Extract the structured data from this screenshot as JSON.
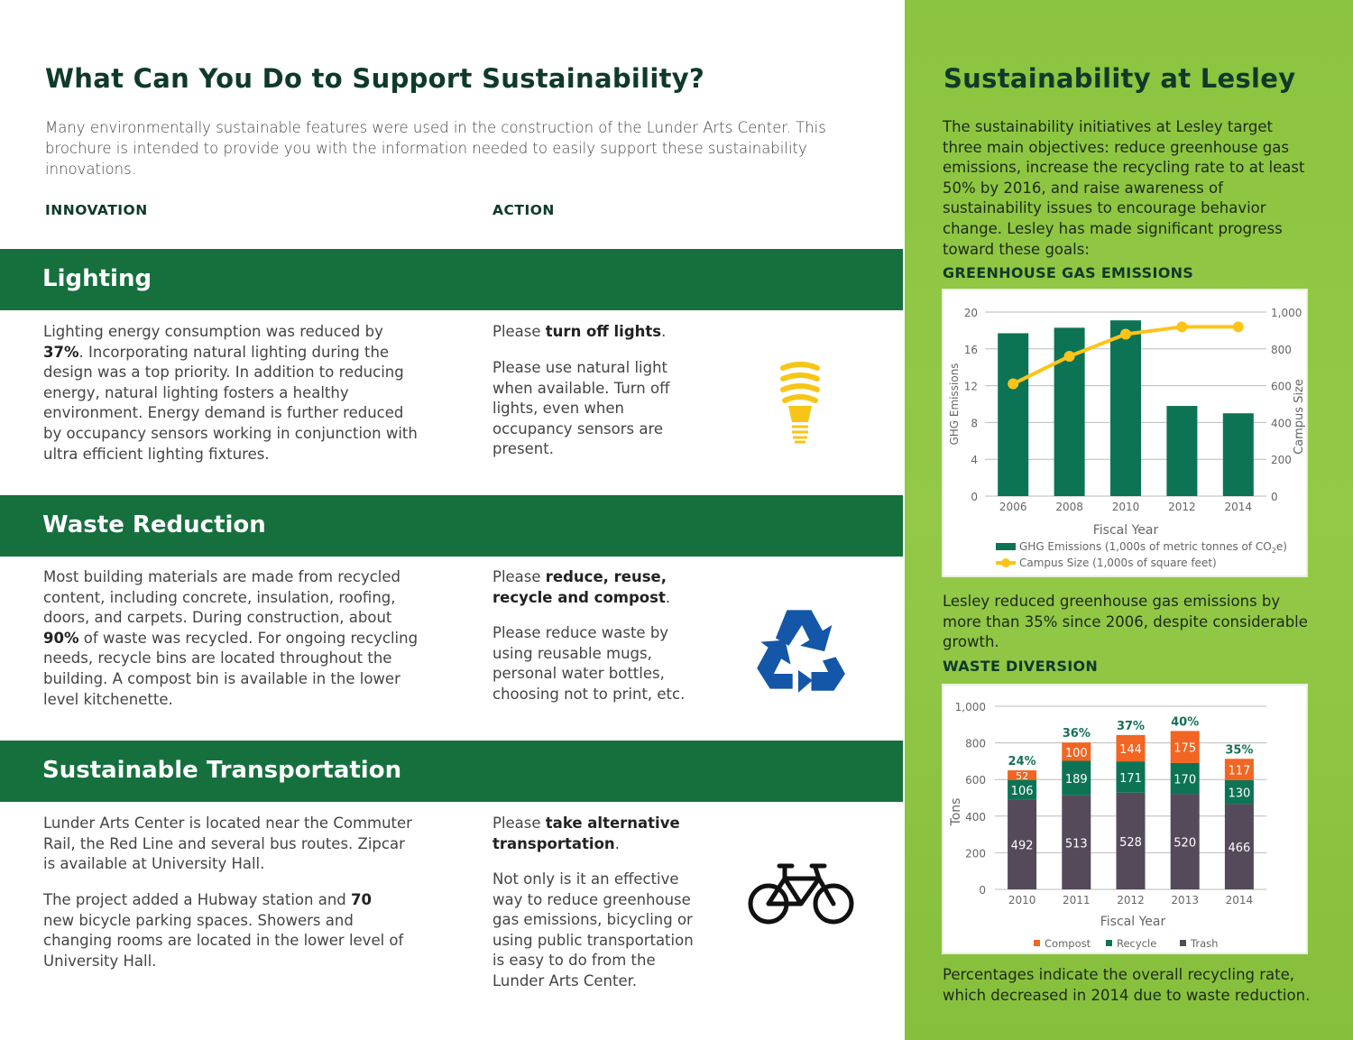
{
  "left": {
    "title": "What Can You Do to Support Sustainability?",
    "intro": "Many environmentally sustainable features were used in the construction of the Lunder Arts Center.  This brochure is intended to provide you with the information needed to easily support these sustainability innovations.",
    "col_innovation": "INNOVATION",
    "col_action": "ACTION",
    "sections": [
      {
        "title": "Lighting",
        "innovation": [
          "Lighting energy consumption was reduced by ",
          "37%",
          ". Incorporating natural lighting during the design was a top priority.  In addition to reducing energy, natural lighting fosters a healthy environment.  Energy demand is further reduced by occupancy sensors working in conjunction with ultra efficient lighting fixtures."
        ],
        "action_lead": [
          "Please ",
          "turn off lights",
          "."
        ],
        "action_body": "Please use natural light when available.  Turn off lights, even when occupancy sensors are present.",
        "icon": "lightbulb-icon"
      },
      {
        "title": "Waste Reduction",
        "innovation": [
          "Most building materials are made from recycled content, including concrete, insulation, roofing, doors, and carpets.  During construction, about ",
          "90%",
          " of waste was recycled.  For ongoing recycling needs, recycle bins are located throughout the building.  A compost bin is available in the lower level kitchenette."
        ],
        "action_lead": [
          "Please ",
          "reduce, reuse, recycle and compost",
          "."
        ],
        "action_body": "Please reduce waste by using reusable mugs, personal water bottles, choosing not to print, etc.",
        "icon": "recycle-icon"
      },
      {
        "title": "Sustainable Transportation",
        "innovation": "Lunder Arts Center is located near the Commuter Rail, the Red Line and several bus routes.  Zipcar is available at University Hall.",
        "innovation2": [
          "The project added a Hubway station and ",
          "70",
          " new bicycle parking spaces.  Showers and changing rooms are located in the lower level of University Hall."
        ],
        "action_lead": [
          "Please ",
          "take alternative transportation",
          "."
        ],
        "action_body": "Not only is it an effective way to reduce greenhouse gas emissions, bicycling or using public transportation is easy to do from the Lunder Arts Center.",
        "icon": "bicycle-icon"
      }
    ]
  },
  "right": {
    "title": "Sustainability at Lesley",
    "intro": "The sustainability initiatives at Lesley target three main objectives: reduce greenhouse gas emissions, increase the recycling rate to at least 50% by 2016, and raise awareness of sustainability issues to encourage behavior change.  Lesley has made significant progress toward these goals:",
    "ghg_heading": "GREENHOUSE GAS EMISSIONS",
    "ghg_caption": "Lesley reduced greenhouse gas emissions by more than 35% since 2006, despite considerable growth.",
    "waste_heading": "WASTE DIVERSION",
    "waste_caption": "Percentages indicate the overall recycling rate, which decreased in 2014 due to waste reduction."
  },
  "colors": {
    "band": "#16703e",
    "ghg_bar": "#0d7355",
    "campus_line": "#fcc419",
    "compost": "#f26522",
    "recycle": "#0d7355",
    "trash": "#544a5a",
    "pct": "#16705a"
  },
  "chart_data": [
    {
      "type": "bar",
      "title": "GREENHOUSE GAS EMISSIONS",
      "xlabel": "Fiscal Year",
      "ylabel": "GHG Emissions",
      "y2label": "Campus Size",
      "categories": [
        "2006",
        "2008",
        "2010",
        "2012",
        "2014"
      ],
      "ylim": [
        0,
        20
      ],
      "yticks": [
        "0",
        "4",
        "8",
        "12",
        "16",
        "20"
      ],
      "y2lim": [
        0,
        1000
      ],
      "y2ticks": [
        "0",
        "200",
        "400",
        "600",
        "800",
        "1,000"
      ],
      "series": [
        {
          "name": "GHG Emissions (1,000s of metric tonnes of CO",
          "name_sub": "2",
          "name_end": "e)",
          "type": "bar",
          "axis": "left",
          "values": [
            17.7,
            18.3,
            19.1,
            9.8,
            9.0
          ]
        },
        {
          "name": "Campus Size (1,000s of square feet)",
          "type": "line",
          "axis": "right",
          "values": [
            610,
            760,
            880,
            920,
            920
          ]
        }
      ],
      "grid": true,
      "legend": "bottom"
    },
    {
      "type": "bar",
      "stacked": true,
      "title": "WASTE DIVERSION",
      "xlabel": "Fiscal Year",
      "ylabel": "Tons",
      "categories": [
        "2010",
        "2011",
        "2012",
        "2013",
        "2014"
      ],
      "ylim": [
        0,
        1000
      ],
      "yticks": [
        "0",
        "200",
        "400",
        "600",
        "800",
        "1,000"
      ],
      "series": [
        {
          "name": "Trash",
          "values": [
            492,
            513,
            528,
            520,
            466
          ]
        },
        {
          "name": "Recycle",
          "values": [
            106,
            189,
            171,
            170,
            130
          ]
        },
        {
          "name": "Compost",
          "values": [
            52,
            100,
            144,
            175,
            117
          ]
        }
      ],
      "legend_order": [
        "Compost",
        "Recycle",
        "Trash"
      ],
      "annotations": [
        "24%",
        "36%",
        "37%",
        "40%",
        "35%"
      ],
      "grid": true,
      "legend": "bottom"
    }
  ]
}
